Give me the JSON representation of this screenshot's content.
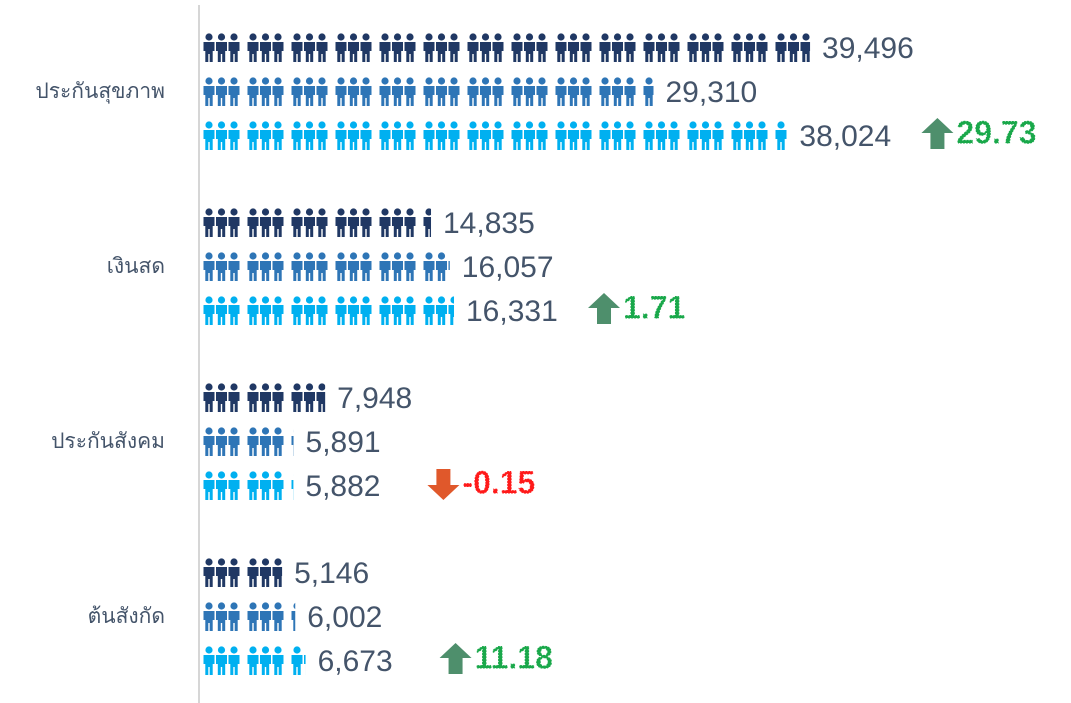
{
  "chart_data": {
    "type": "pictogram-bar",
    "categories": [
      "ประกันสุขภาพ",
      "เงินสด",
      "ประกันสังคม",
      "ต้นสังกัด"
    ],
    "series": [
      {
        "color": "#203864",
        "values": [
          39496,
          14835,
          7948,
          5146
        ],
        "value_labels": [
          "39,496",
          "14,835",
          "7,948",
          "5,146"
        ]
      },
      {
        "color": "#2e75b6",
        "values": [
          29310,
          16057,
          5891,
          6002
        ],
        "value_labels": [
          "29,310",
          "16,057",
          "5,891",
          "6,002"
        ]
      },
      {
        "color": "#00b0f0",
        "values": [
          38024,
          16331,
          5882,
          6673
        ],
        "value_labels": [
          "38,024",
          "16,331",
          "5,882",
          "6,673"
        ]
      }
    ],
    "changes": {
      "values": [
        29.73,
        1.71,
        -0.15,
        11.18
      ],
      "up_color": "#19a84a",
      "down_color": "#ff1a1a",
      "up_arrow_color": "#4e8f6c",
      "down_arrow_color": "#e0582b"
    }
  }
}
